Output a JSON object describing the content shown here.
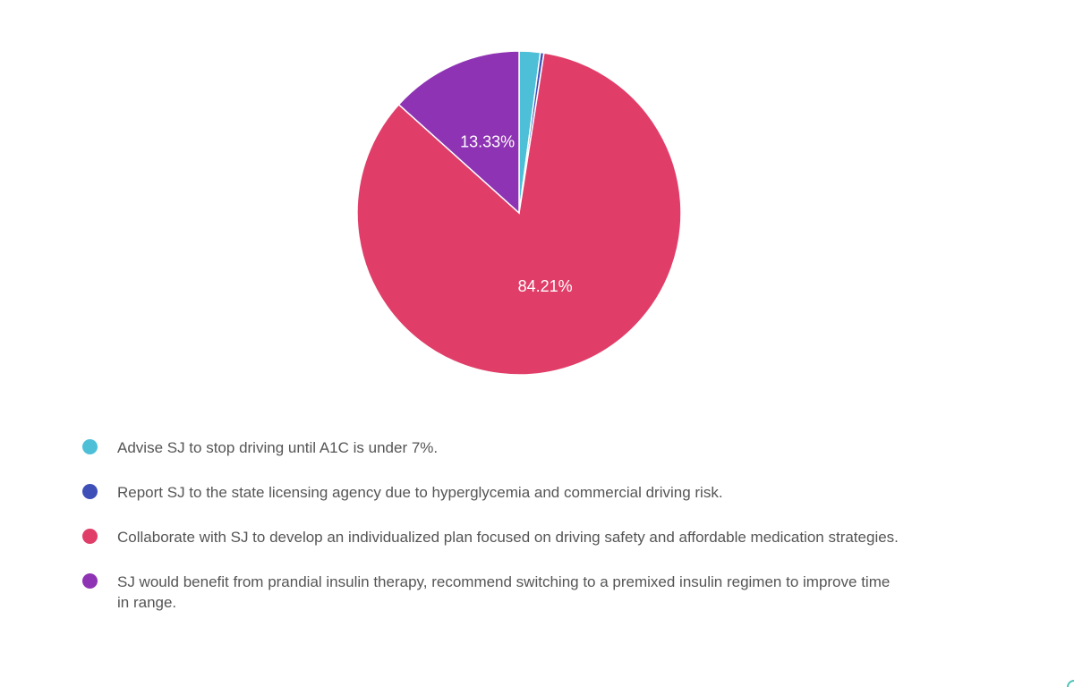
{
  "chart_data": {
    "type": "pie",
    "slices": [
      {
        "label": "Advise SJ to stop driving until A1C is under 7%.",
        "value": 2.1,
        "color": "#4dc0d8",
        "data_label": ""
      },
      {
        "label": "Report SJ to the state licensing agency due to hyperglycemia and commercial driving risk.",
        "value": 0.36,
        "color": "#3f4fb8",
        "data_label": ""
      },
      {
        "label": "Collaborate with SJ to develop an individualized plan focused on driving safety and affordable medication strategies.",
        "value": 84.21,
        "color": "#e03e68",
        "data_label": "84.21%"
      },
      {
        "label": "SJ would benefit from prandial insulin therapy, recommend switching to a premixed insulin regimen to improve time in range.",
        "value": 13.33,
        "color": "#8e33b3",
        "data_label": "13.33%"
      }
    ],
    "legend_position": "bottom-left"
  }
}
